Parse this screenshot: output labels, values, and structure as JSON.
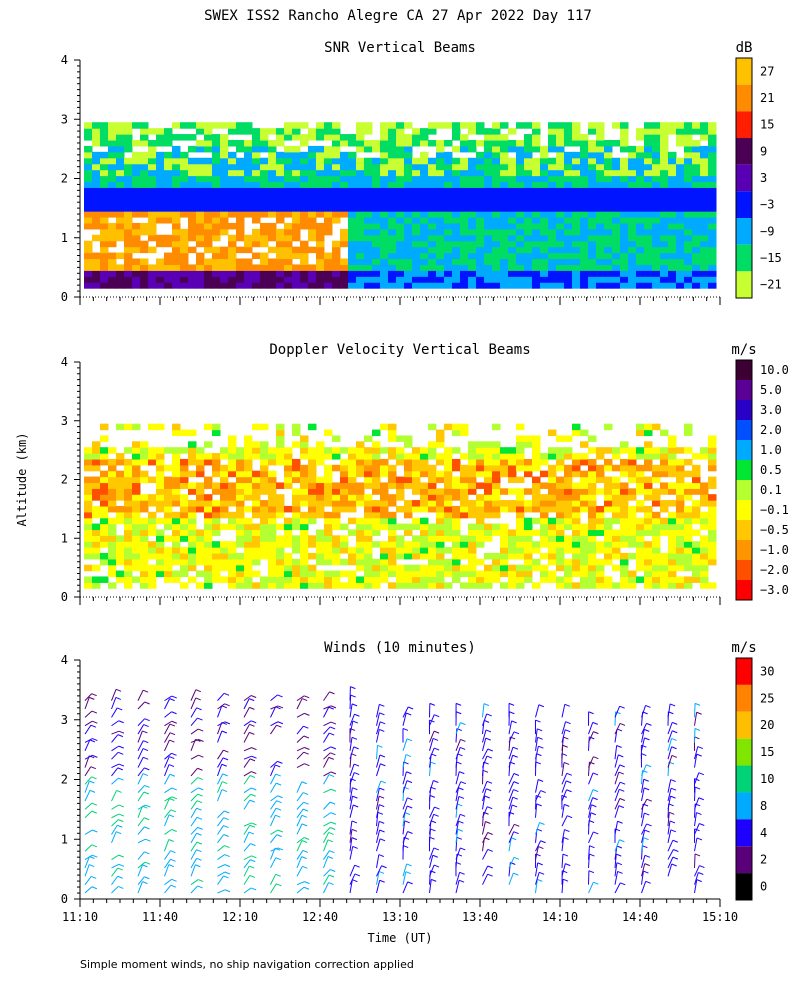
{
  "figure_title": "SWEX ISS2 Rancho Alegre CA  27 Apr 2022 Day 117",
  "footer_note": "Simple moment winds, no ship navigation correction applied",
  "chart_data": [
    {
      "type": "heatmap",
      "title": "SNR Vertical Beams",
      "xlabel": "",
      "ylabel": "",
      "xlim": [
        "11:10",
        "15:10"
      ],
      "ylim": [
        0,
        4
      ],
      "y_ticks": [
        "0",
        "1",
        "2",
        "3",
        "4"
      ],
      "x_ticks": [],
      "colorbar": {
        "unit": "dB",
        "labels": [
          "27",
          "21",
          "15",
          "9",
          "3",
          "−3",
          "−9",
          "−15",
          "−21"
        ],
        "colors": [
          "#ffc000",
          "#ff8c00",
          "#ff1e00",
          "#4b0055",
          "#5a00b4",
          "#0014ff",
          "#00aaff",
          "#00dc64",
          "#c8ff32"
        ]
      }
    },
    {
      "type": "heatmap",
      "title": "Doppler Velocity Vertical Beams",
      "xlabel": "",
      "ylabel": "Altitude (km)",
      "xlim": [
        "11:10",
        "15:10"
      ],
      "ylim": [
        0,
        4
      ],
      "y_ticks": [
        "0",
        "1",
        "2",
        "3",
        "4"
      ],
      "x_ticks": [],
      "colorbar": {
        "unit": "m/s",
        "labels": [
          "10.0",
          "5.0",
          "3.0",
          "2.0",
          "1.0",
          "0.5",
          "0.1",
          "−0.1",
          "−0.5",
          "−1.0",
          "−2.0",
          "−3.0"
        ],
        "colors": [
          "#3c0032",
          "#5a0096",
          "#2800c8",
          "#0050ff",
          "#00aaff",
          "#00e632",
          "#b4ff32",
          "#ffff00",
          "#ffc800",
          "#ff9600",
          "#ff5000",
          "#ff0000"
        ]
      }
    },
    {
      "type": "wind_barbs",
      "title": "Winds (10 minutes)",
      "xlabel": "Time (UT)",
      "ylabel": "",
      "xlim": [
        "11:10",
        "15:10"
      ],
      "ylim": [
        0,
        4
      ],
      "y_ticks": [
        "0",
        "1",
        "2",
        "3",
        "4"
      ],
      "x_ticks": [
        "11:10",
        "11:40",
        "12:10",
        "12:40",
        "13:10",
        "13:40",
        "14:10",
        "14:40",
        "15:10"
      ],
      "colorbar": {
        "unit": "m/s",
        "labels": [
          "30",
          "25",
          "20",
          "15",
          "10",
          "8",
          "4",
          "2",
          "0"
        ],
        "colors": [
          "#ff0000",
          "#ff8200",
          "#ffbe00",
          "#80e600",
          "#00d278",
          "#00aaff",
          "#1e00ff",
          "#5a007a",
          "#000000"
        ]
      }
    }
  ]
}
